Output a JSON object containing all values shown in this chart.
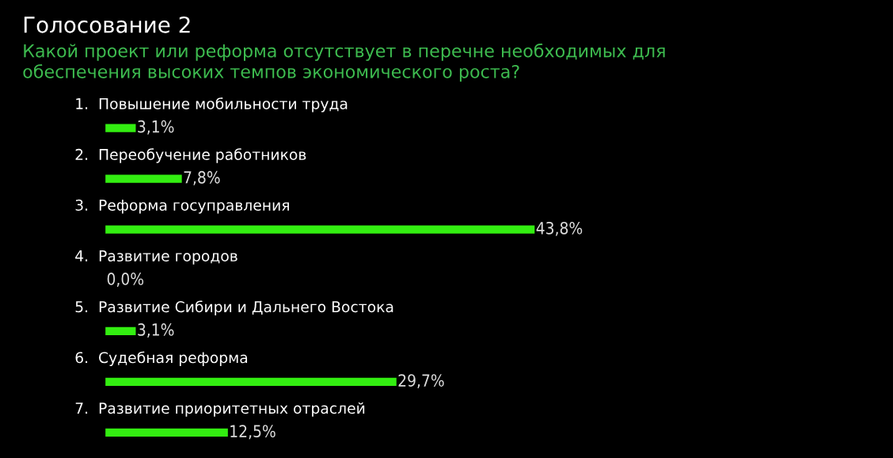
{
  "chart_data": {
    "type": "bar",
    "orientation": "horizontal",
    "title": "Голосование 2",
    "subtitle": "Какой проект или реформа отсутствует в перечне необходимых для\nобеспечения высоких темпов экономического роста?",
    "categories": [
      "1.  Повышение мобильности труда",
      "2.  Переобучение работников",
      "3.  Реформа госуправления",
      "4.  Развитие городов",
      "5.  Развитие Сибири и Дальнего Востока",
      "6.  Судебная реформа",
      "7.  Развитие приоритетных отраслей"
    ],
    "values": [
      3.1,
      7.8,
      43.8,
      0.0,
      3.1,
      29.7,
      12.5
    ],
    "value_labels": [
      "3,1%",
      "7,8%",
      "43,8%",
      "0,0%",
      "3,1%",
      "29,7%",
      "12,5%"
    ],
    "color": "#33ee11",
    "xlim": [
      0,
      80
    ]
  }
}
